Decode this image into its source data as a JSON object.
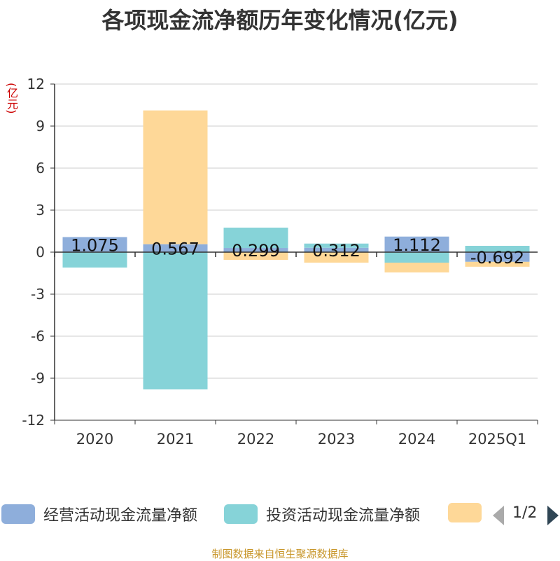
{
  "chart_data": {
    "type": "bar",
    "stacked": true,
    "title": "各项现金流净额历年变化情况(亿元)",
    "ylabel": "(亿元)",
    "categories": [
      "2020",
      "2021",
      "2022",
      "2023",
      "2024",
      "2025Q1"
    ],
    "ylim": [
      -12,
      12
    ],
    "yticks": [
      12,
      9,
      6,
      3,
      0,
      -3,
      -6,
      -9,
      -12
    ],
    "grid": true,
    "series": [
      {
        "name": "经营活动现金流量净额",
        "color": "#8eaedb",
        "values": [
          1.075,
          0.567,
          0.299,
          0.312,
          1.112,
          -0.692
        ],
        "labels": [
          "1.075",
          "0.567",
          "0.299",
          "0.312",
          "1.112",
          "-0.692"
        ]
      },
      {
        "name": "投资活动现金流量净额",
        "color": "#86d3d8",
        "values": [
          -1.1,
          -9.8,
          1.45,
          0.3,
          -0.75,
          0.45
        ]
      },
      {
        "name": "",
        "color": "#fed898",
        "values": [
          0,
          9.55,
          -0.55,
          -0.75,
          -0.7,
          -0.35
        ]
      }
    ]
  },
  "legend": {
    "page": "1/2"
  },
  "source": "制图数据来自恒生聚源数据库"
}
